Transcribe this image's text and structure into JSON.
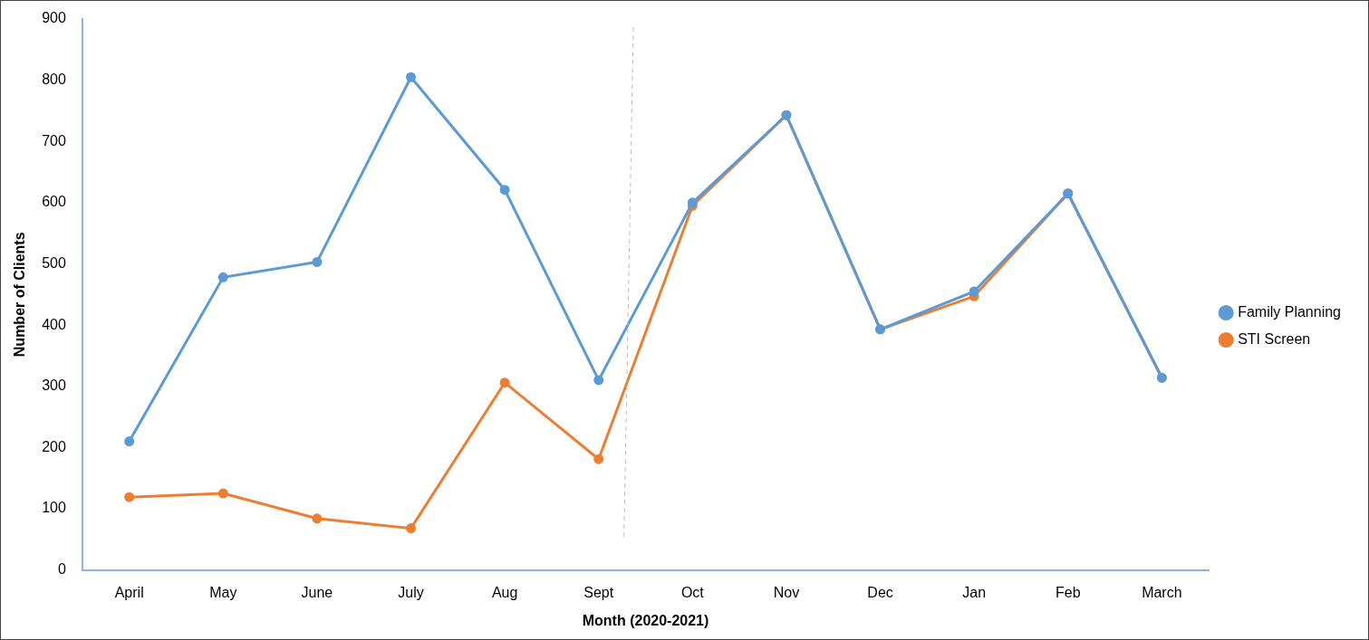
{
  "chart_data": {
    "type": "line",
    "x_label": "Month (2020-2021)",
    "y_label": "Number of Clients",
    "categories": [
      "April",
      "May",
      "June",
      "July",
      "Aug",
      "Sept",
      "Oct",
      "Nov",
      "Dec",
      "Jan",
      "Feb",
      "March"
    ],
    "series": [
      {
        "name": "Family Planning",
        "color": "#5b9bd5",
        "marker": "circle",
        "line_style": "solid",
        "values": [
          210,
          478,
          503,
          805,
          621,
          310,
          600,
          743,
          393,
          455,
          615,
          314
        ]
      },
      {
        "name": "STI Screen",
        "color": "#ed7d31",
        "marker": "circle",
        "line_style": "solid",
        "values": [
          119,
          125,
          84,
          68,
          306,
          181,
          595,
          743,
          393,
          447,
          615,
          314
        ]
      }
    ],
    "ylim": [
      0,
      900
    ],
    "yticks": [
      0,
      100,
      200,
      300,
      400,
      500,
      600,
      700,
      800,
      900
    ],
    "grid": false,
    "legend": "right"
  }
}
